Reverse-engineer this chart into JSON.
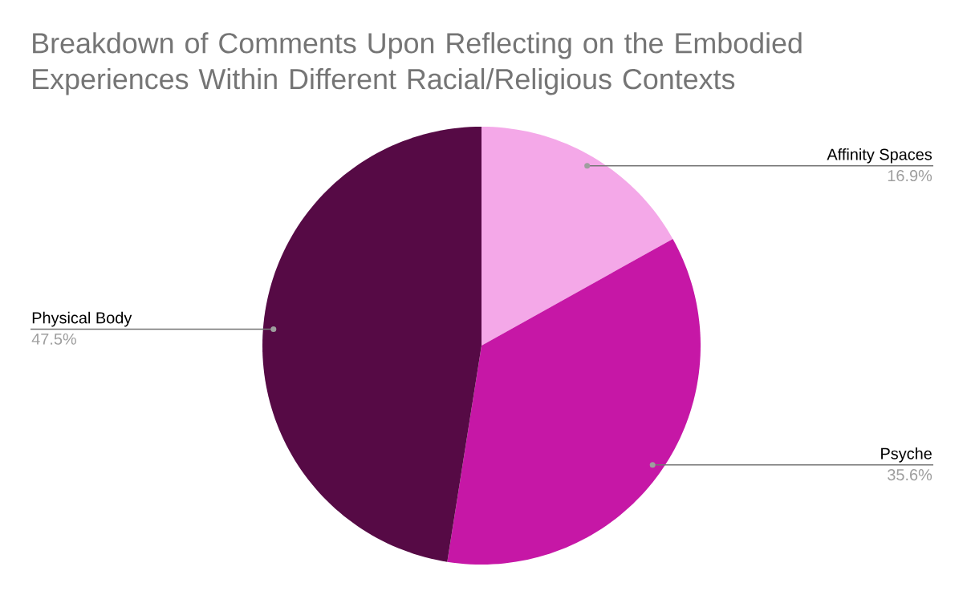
{
  "chart_data": {
    "type": "pie",
    "title": "Breakdown of Comments Upon Reflecting on the Embodied Experiences Within Different Racial/Religious Contexts",
    "categories": [
      "Affinity Spaces",
      "Psyche",
      "Physical Body"
    ],
    "values": [
      16.9,
      35.6,
      47.5
    ],
    "value_labels": [
      "16.9%",
      "35.6%",
      "47.5%"
    ],
    "colors": [
      "#f4a8e8",
      "#c617a6",
      "#560a45"
    ]
  }
}
